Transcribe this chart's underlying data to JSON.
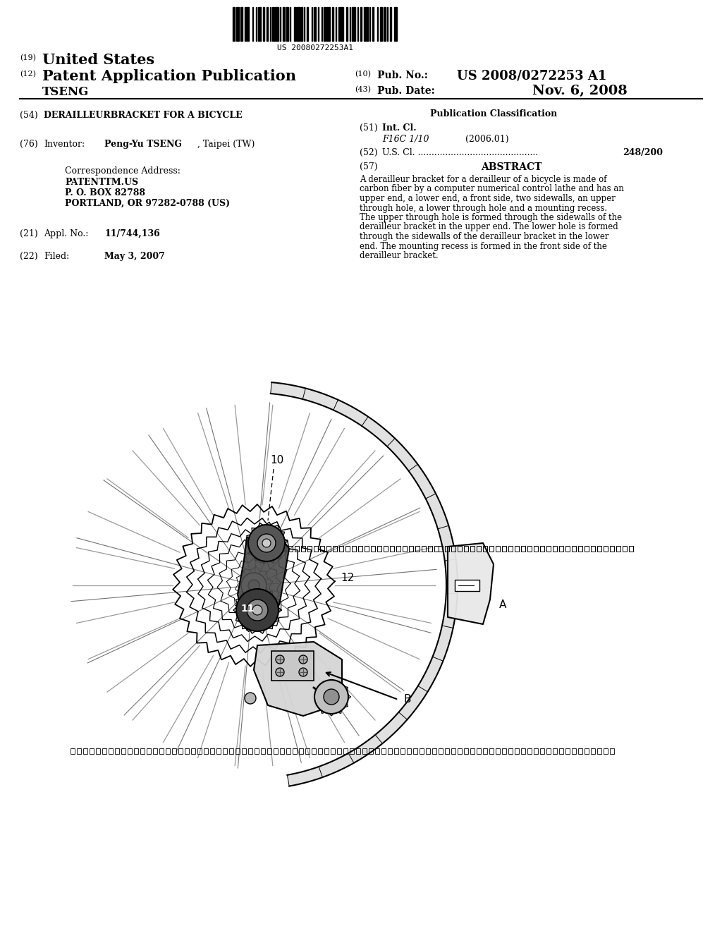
{
  "bg_color": "#ffffff",
  "barcode_text": "US 20080272253A1",
  "title19": "United States",
  "title12": "Patent Application Publication",
  "tseng": "TSENG",
  "pub_no": "US 2008/0272253 A1",
  "pub_date": "Nov. 6, 2008",
  "section54_text": "DERAILLEURBRACKET FOR A BICYCLE",
  "pub_class_title": "Publication Classification",
  "section51_class": "F16C 1/10",
  "section51_year": "(2006.01)",
  "section52_dots": "............................................",
  "section52_value": "248/200",
  "section57_title": "ABSTRACT",
  "abstract_lines": [
    "A derailleur bracket for a derailleur of a bicycle is made of",
    "carbon fiber by a computer numerical control lathe and has an",
    "upper end, a lower end, a front side, two sidewalls, an upper",
    "through hole, a lower through hole and a mounting recess.",
    "The upper through hole is formed through the sidewalls of the",
    "derailleur bracket in the upper end. The lower hole is formed",
    "through the sidewalls of the derailleur bracket in the lower",
    "end. The mounting recess is formed in the front side of the",
    "derailleur bracket."
  ],
  "inventor_name": "Peng-Yu TSENG",
  "inventor_loc": ", Taipei (TW)",
  "corr_address": "Correspondence Address:",
  "corr_line1": "PATENTTM.US",
  "corr_line2": "P. O. BOX 82788",
  "corr_line3": "PORTLAND, OR 97282-0788 (US)",
  "appl_no": "11/744,136",
  "filed": "May 3, 2007",
  "fig_label_10": "10",
  "fig_label_11": "11",
  "fig_label_12": "12",
  "fig_label_A": "A",
  "fig_label_B": "B",
  "barcode_pattern": [
    2,
    1,
    3,
    1,
    2,
    2,
    1,
    1,
    2,
    3,
    1,
    2,
    1,
    1,
    3,
    2,
    1,
    2,
    1,
    2,
    1,
    1,
    2,
    1,
    3,
    1,
    1,
    2,
    2,
    1,
    2,
    1,
    1,
    3,
    2,
    1,
    2,
    1,
    2,
    1,
    1,
    2,
    1,
    3,
    1,
    1,
    2,
    2,
    1,
    2,
    1,
    1,
    2,
    1,
    3,
    2,
    1,
    2,
    1,
    2,
    1,
    1,
    2,
    3,
    1,
    2,
    1,
    1,
    3,
    2,
    1,
    2,
    1,
    2,
    1,
    1,
    2,
    1,
    1,
    2,
    1,
    3,
    1,
    2,
    2,
    1,
    2,
    1,
    1,
    2,
    1,
    3,
    2,
    1
  ]
}
